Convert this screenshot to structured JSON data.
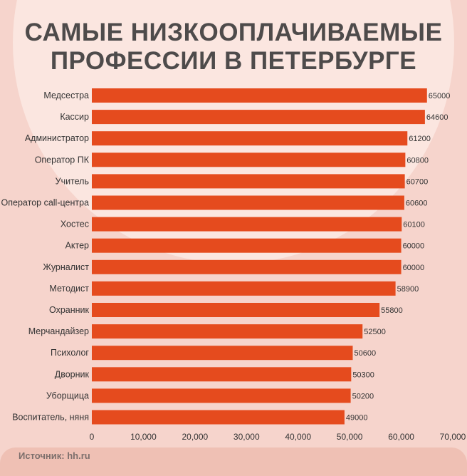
{
  "title_lines": [
    "САМЫЕ НИЗКООПЛАЧИВАЕМЫЕ",
    "ПРОФЕССИИ В ПЕТЕРБУРГЕ"
  ],
  "source": "Источник: hh.ru",
  "colors": {
    "bar": "#e54b1e",
    "background": "#f6d4cc",
    "text": "#333333"
  },
  "chart_data": {
    "type": "bar",
    "orientation": "horizontal",
    "categories": [
      "Медсестра",
      "Кассир",
      "Администратор",
      "Оператор ПК",
      "Учитель",
      "Оператор call-центра",
      "Хостес",
      "Актер",
      "Журналист",
      "Методист",
      "Охранник",
      "Мерчандайзер",
      "Психолог",
      "Дворник",
      "Уборщица",
      "Воспитатель, няня"
    ],
    "values": [
      65000,
      64600,
      61200,
      60800,
      60700,
      60600,
      60100,
      60000,
      60000,
      58900,
      55800,
      52500,
      50600,
      50300,
      50200,
      49000
    ],
    "data_labels": [
      "65000",
      "64600",
      "61200",
      "60800",
      "60700",
      "60600",
      "60100",
      "60000",
      "60000",
      "58900",
      "55800",
      "52500",
      "50600",
      "50300",
      "50200",
      "49000"
    ],
    "xlim": [
      0,
      70000
    ],
    "xticks": [
      0,
      10000,
      20000,
      30000,
      40000,
      50000,
      60000,
      70000
    ],
    "xtick_labels": [
      "0",
      "10,000",
      "20,000",
      "30,000",
      "40,000",
      "50,000",
      "60,000",
      "70,000"
    ],
    "grid": false,
    "legend": "none"
  }
}
